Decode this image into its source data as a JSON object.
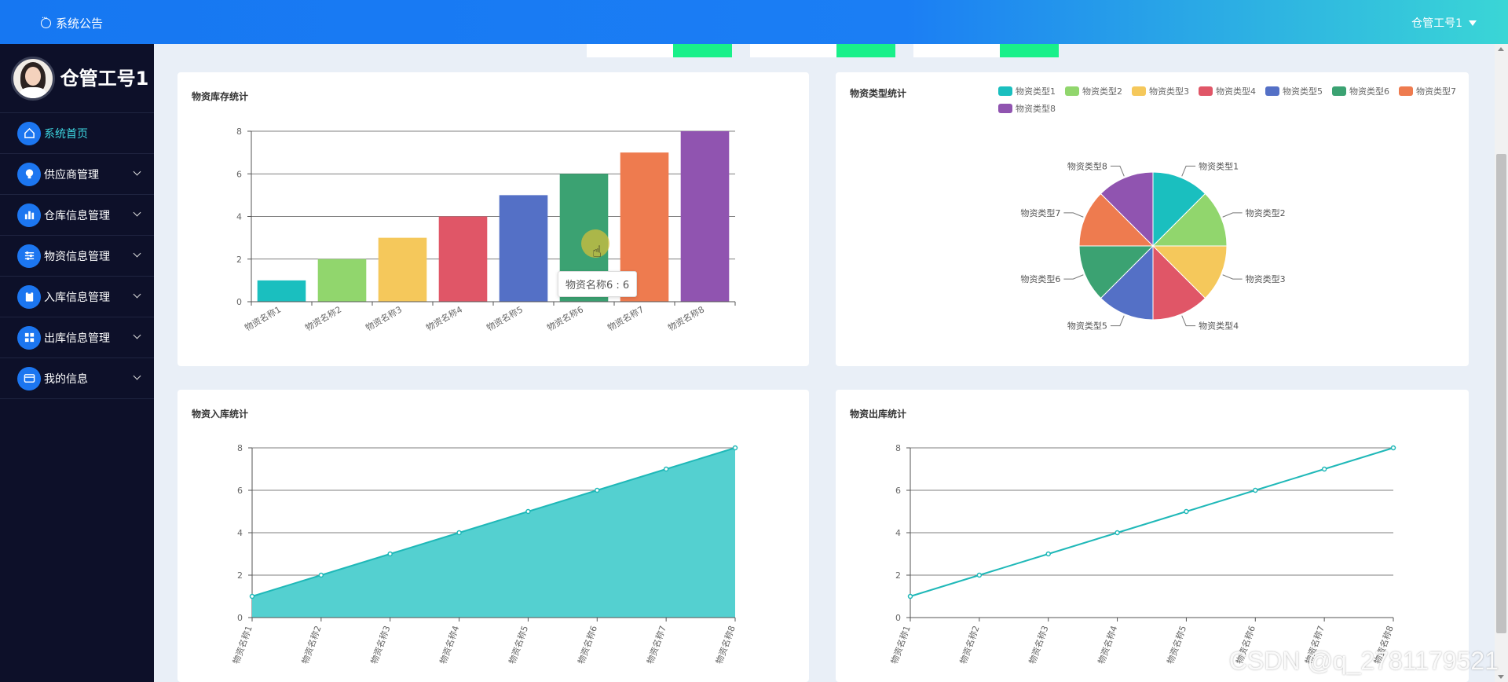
{
  "header": {
    "notice_label": "系统公告",
    "user_label": "仓管工号1"
  },
  "sidebar": {
    "profile_name": "仓管工号1",
    "items": [
      {
        "label": "系统首页",
        "icon": "home-icon",
        "active": true,
        "expandable": false
      },
      {
        "label": "供应商管理",
        "icon": "bulb-icon",
        "expandable": true
      },
      {
        "label": "仓库信息管理",
        "icon": "bar-chart-icon",
        "expandable": true
      },
      {
        "label": "物资信息管理",
        "icon": "sliders-icon",
        "expandable": true
      },
      {
        "label": "入库信息管理",
        "icon": "clipboard-icon",
        "expandable": true
      },
      {
        "label": "出库信息管理",
        "icon": "grid-icon",
        "expandable": true
      },
      {
        "label": "我的信息",
        "icon": "card-icon",
        "expandable": true
      }
    ]
  },
  "palette": [
    "#1abfbf",
    "#91d66d",
    "#f5c85b",
    "#e05667",
    "#5470c6",
    "#3ba272",
    "#ee7b4f",
    "#9054b0"
  ],
  "cards": {
    "inventory": {
      "title": "物资库存统计"
    },
    "types": {
      "title": "物资类型统计"
    },
    "inbound": {
      "title": "物资入库统计"
    },
    "outbound": {
      "title": "物资出库统计"
    }
  },
  "tooltip": {
    "text": "物资名称6 : 6"
  },
  "watermark": "CSDN @q_2781179521",
  "chart_data": [
    {
      "type": "bar",
      "title": "物资库存统计",
      "categories": [
        "物资名称1",
        "物资名称2",
        "物资名称3",
        "物资名称4",
        "物资名称5",
        "物资名称6",
        "物资名称7",
        "物资名称8"
      ],
      "values": [
        1,
        2,
        3,
        4,
        5,
        6,
        7,
        8
      ],
      "ylim": [
        0,
        8
      ],
      "yticks": [
        0,
        2,
        4,
        6,
        8
      ],
      "grid": true
    },
    {
      "type": "pie",
      "title": "物资类型统计",
      "labels": [
        "物资类型1",
        "物资类型2",
        "物资类型3",
        "物资类型4",
        "物资类型5",
        "物资类型6",
        "物资类型7",
        "物资类型8"
      ],
      "values": [
        1,
        1,
        1,
        1,
        1,
        1,
        1,
        1
      ],
      "legend": "top-right"
    },
    {
      "type": "area",
      "title": "物资入库统计",
      "categories": [
        "物资名称1",
        "物资名称2",
        "物资名称3",
        "物资名称4",
        "物资名称5",
        "物资名称6",
        "物资名称7",
        "物资名称8"
      ],
      "values": [
        1,
        2,
        3,
        4,
        5,
        6,
        7,
        8
      ],
      "ylim": [
        0,
        8
      ],
      "yticks": [
        0,
        2,
        4,
        6,
        8
      ],
      "grid": true
    },
    {
      "type": "line",
      "title": "物资出库统计",
      "categories": [
        "物资名称1",
        "物资名称2",
        "物资名称3",
        "物资名称4",
        "物资名称5",
        "物资名称6",
        "物资名称7",
        "物资名称8"
      ],
      "values": [
        1,
        2,
        3,
        4,
        5,
        6,
        7,
        8
      ],
      "ylim": [
        0,
        8
      ],
      "yticks": [
        0,
        2,
        4,
        6,
        8
      ],
      "grid": true
    }
  ]
}
